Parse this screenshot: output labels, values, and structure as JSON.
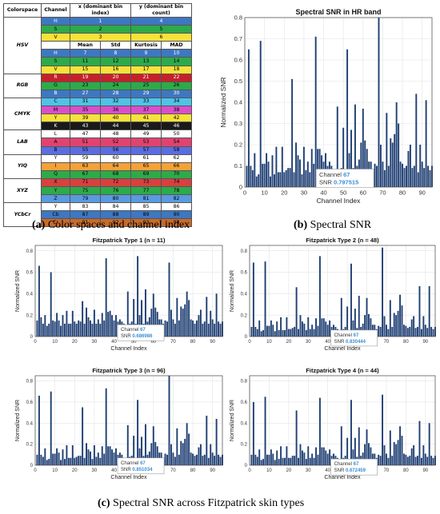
{
  "captions": {
    "a_label": "(a)",
    "a_text": "Color spaces and channel index",
    "b_label": "(b)",
    "b_text": "Spectral SNR",
    "c_label": "(c)",
    "c_text": "Spectral SNR across Fitzpatrick skin types"
  },
  "table": {
    "headers": [
      "Colorspace",
      "Channel",
      "x (dominant bin index)",
      "y (dominant bin count)"
    ],
    "stat_headers": [
      "Mean",
      "Std",
      "Kurtosis",
      "MAD"
    ],
    "colorspaces": [
      {
        "name": "HSV",
        "channels": [
          [
            "H",
            "#3e77c2",
            "#fff"
          ],
          [
            "S",
            "#2eaa4a",
            "#000"
          ],
          [
            "V",
            "#f6e23a",
            "#000"
          ]
        ],
        "header_rows": [
          [
            "1",
            "4"
          ],
          [
            "2",
            "5"
          ],
          [
            "3",
            "6"
          ]
        ],
        "stat_rows": [
          [
            "7",
            "8",
            "9",
            "10"
          ],
          [
            "11",
            "12",
            "13",
            "14"
          ],
          [
            "15",
            "16",
            "17",
            "18"
          ]
        ]
      },
      {
        "name": "RGB",
        "channels": [
          [
            "R",
            "#c8202a",
            "#fff"
          ],
          [
            "G",
            "#2eaa4a",
            "#000"
          ],
          [
            "B",
            "#3e77c2",
            "#fff"
          ]
        ],
        "stat_rows": [
          [
            "19",
            "20",
            "21",
            "22"
          ],
          [
            "23",
            "24",
            "25",
            "26"
          ],
          [
            "27",
            "28",
            "29",
            "30"
          ]
        ]
      },
      {
        "name": "CMYK",
        "channels": [
          [
            "C",
            "#4fc3e8",
            "#000"
          ],
          [
            "M",
            "#d94fc9",
            "#000"
          ],
          [
            "Y",
            "#f6e23a",
            "#000"
          ],
          [
            "K",
            "#1a1a1a",
            "#fff"
          ]
        ],
        "stat_rows": [
          [
            "31",
            "32",
            "33",
            "34"
          ],
          [
            "35",
            "36",
            "37",
            "38"
          ],
          [
            "39",
            "40",
            "41",
            "42"
          ],
          [
            "43",
            "44",
            "45",
            "46"
          ]
        ]
      },
      {
        "name": "LAB",
        "channels": [
          [
            "L",
            "#ffffff",
            "#000"
          ],
          [
            "A",
            "#e0446e",
            "#000"
          ],
          [
            "B",
            "#5a6ee0",
            "#000"
          ]
        ],
        "stat_rows": [
          [
            "47",
            "48",
            "49",
            "50"
          ],
          [
            "51",
            "52",
            "53",
            "54"
          ],
          [
            "55",
            "56",
            "57",
            "58"
          ]
        ]
      },
      {
        "name": "YIQ",
        "channels": [
          [
            "Y",
            "#ffffff",
            "#000"
          ],
          [
            "I",
            "#f4a13a",
            "#000"
          ],
          [
            "Q",
            "#2eaa4a",
            "#000"
          ]
        ],
        "stat_rows": [
          [
            "59",
            "60",
            "61",
            "62"
          ],
          [
            "63",
            "64",
            "65",
            "66"
          ],
          [
            "67",
            "68",
            "69",
            "70"
          ]
        ]
      },
      {
        "name": "XYZ",
        "channels": [
          [
            "X",
            "#d94040",
            "#000"
          ],
          [
            "Y",
            "#2eaa4a",
            "#000"
          ],
          [
            "Z",
            "#5a9ae0",
            "#000"
          ]
        ],
        "stat_rows": [
          [
            "71",
            "72",
            "73",
            "74"
          ],
          [
            "75",
            "76",
            "77",
            "78"
          ],
          [
            "79",
            "80",
            "81",
            "82"
          ]
        ]
      },
      {
        "name": "YCbCr",
        "channels": [
          [
            "Y",
            "#ffffff",
            "#000"
          ],
          [
            "Cb",
            "#3e77c2",
            "#000"
          ],
          [
            "Cr",
            "#c86a2a",
            "#000"
          ]
        ],
        "stat_rows": [
          [
            "83",
            "84",
            "85",
            "86"
          ],
          [
            "87",
            "88",
            "89",
            "90"
          ],
          [
            "91",
            "92",
            "93",
            "94"
          ]
        ]
      }
    ]
  },
  "chart_data": [
    {
      "type": "bar",
      "title": "Spectral SNR in HR band",
      "xlabel": "Channel Index",
      "ylabel": "Normalized SNR",
      "xlim": [
        0,
        95
      ],
      "ylim": [
        0,
        0.8
      ],
      "yticks": [
        "0",
        "0.1",
        "0.2",
        "0.3",
        "0.4",
        "0.5",
        "0.6",
        "0.7",
        "0.8"
      ],
      "xticks": [
        "0",
        "10",
        "20",
        "30",
        "40",
        "50",
        "60",
        "70",
        "80",
        "90"
      ],
      "grid": true,
      "bar_color": "#1f3f73",
      "annotation": {
        "line1_label": "Channel",
        "line1_value": "67",
        "line2_label": "SNR",
        "line2_value": "0.797515",
        "value_color": "#3a8fd8"
      },
      "values": [
        0.1,
        0.65,
        0.1,
        0.08,
        0.16,
        0.05,
        0.06,
        0.69,
        0.11,
        0.11,
        0.16,
        0.12,
        0.05,
        0.15,
        0.06,
        0.19,
        0.07,
        0.07,
        0.19,
        0.07,
        0.08,
        0.09,
        0.09,
        0.51,
        0.07,
        0.21,
        0.15,
        0.13,
        0.06,
        0.19,
        0.08,
        0.12,
        0.07,
        0.18,
        0.11,
        0.71,
        0.18,
        0.18,
        0.15,
        0.12,
        0.16,
        0.1,
        0.12,
        0.1,
        0.07,
        0.06,
        0.38,
        0.08,
        0.09,
        0.28,
        0.06,
        0.65,
        0.16,
        0.27,
        0.09,
        0.39,
        0.1,
        0.13,
        0.21,
        0.37,
        0.22,
        0.18,
        0.12,
        0.12,
        0.07,
        0.11,
        0.1,
        0.8,
        0.2,
        0.12,
        0.08,
        0.35,
        0.1,
        0.23,
        0.21,
        0.25,
        0.4,
        0.3,
        0.12,
        0.11,
        0.09,
        0.1,
        0.17,
        0.2,
        0.09,
        0.1,
        0.44,
        0.07,
        0.2,
        0.12,
        0.09,
        0.41,
        0.1,
        0.08,
        0.1
      ]
    },
    {
      "type": "bar",
      "title": "Fitzpatrick Type 1 (n = 11)",
      "xlabel": "Channel Index",
      "ylabel": "Normalized SNR",
      "xlim": [
        0,
        95
      ],
      "ylim": [
        0,
        0.85
      ],
      "yticks": [
        "0",
        "0.2",
        "0.4",
        "0.6",
        "0.8"
      ],
      "xticks": [
        "0",
        "10",
        "20",
        "30",
        "40",
        "50",
        "60",
        "70",
        "80",
        "90"
      ],
      "grid": true,
      "bar_color": "#1f3f73",
      "annotation": {
        "line1_label": "Channel",
        "line1_value": "67",
        "line2_label": "SNR",
        "line2_value": "0.686986",
        "value_color": "#3a8fd8"
      },
      "values": [
        0.15,
        0.66,
        0.18,
        0.12,
        0.2,
        0.1,
        0.12,
        0.6,
        0.15,
        0.14,
        0.22,
        0.15,
        0.1,
        0.2,
        0.12,
        0.24,
        0.12,
        0.12,
        0.24,
        0.14,
        0.12,
        0.15,
        0.14,
        0.33,
        0.12,
        0.27,
        0.18,
        0.15,
        0.12,
        0.25,
        0.12,
        0.16,
        0.12,
        0.22,
        0.15,
        0.73,
        0.23,
        0.24,
        0.2,
        0.15,
        0.2,
        0.14,
        0.16,
        0.14,
        0.12,
        0.1,
        0.42,
        0.12,
        0.14,
        0.35,
        0.12,
        0.75,
        0.2,
        0.34,
        0.12,
        0.44,
        0.14,
        0.18,
        0.26,
        0.4,
        0.27,
        0.23,
        0.16,
        0.16,
        0.12,
        0.15,
        0.14,
        0.69,
        0.25,
        0.16,
        0.12,
        0.36,
        0.15,
        0.28,
        0.26,
        0.3,
        0.42,
        0.34,
        0.16,
        0.15,
        0.12,
        0.15,
        0.2,
        0.25,
        0.12,
        0.14,
        0.37,
        0.12,
        0.24,
        0.16,
        0.12,
        0.4,
        0.14,
        0.12,
        0.14
      ]
    },
    {
      "type": "bar",
      "title": "Fitzpatrick Type 2 (n = 48)",
      "xlabel": "Channel Index",
      "ylabel": "Normalized SNR",
      "xlim": [
        0,
        95
      ],
      "ylim": [
        0,
        0.85
      ],
      "yticks": [
        "0",
        "0.2",
        "0.4",
        "0.6",
        "0.8"
      ],
      "xticks": [
        "0",
        "10",
        "20",
        "30",
        "40",
        "50",
        "60",
        "70",
        "80",
        "90"
      ],
      "grid": true,
      "bar_color": "#1f3f73",
      "annotation": {
        "line1_label": "Channel",
        "line1_value": "67",
        "line2_label": "SNR",
        "line2_value": "0.830444",
        "value_color": "#3a8fd8"
      },
      "values": [
        0.09,
        0.69,
        0.09,
        0.07,
        0.15,
        0.05,
        0.06,
        0.7,
        0.1,
        0.1,
        0.15,
        0.11,
        0.05,
        0.14,
        0.06,
        0.18,
        0.06,
        0.06,
        0.18,
        0.07,
        0.07,
        0.08,
        0.09,
        0.46,
        0.07,
        0.2,
        0.14,
        0.12,
        0.06,
        0.18,
        0.07,
        0.11,
        0.07,
        0.17,
        0.1,
        0.75,
        0.17,
        0.17,
        0.14,
        0.11,
        0.15,
        0.09,
        0.11,
        0.09,
        0.07,
        0.06,
        0.36,
        0.07,
        0.09,
        0.28,
        0.06,
        0.68,
        0.15,
        0.26,
        0.08,
        0.38,
        0.09,
        0.12,
        0.2,
        0.36,
        0.21,
        0.17,
        0.11,
        0.11,
        0.07,
        0.1,
        0.09,
        0.83,
        0.19,
        0.11,
        0.07,
        0.34,
        0.09,
        0.22,
        0.2,
        0.24,
        0.39,
        0.29,
        0.11,
        0.1,
        0.08,
        0.09,
        0.16,
        0.19,
        0.08,
        0.09,
        0.47,
        0.07,
        0.19,
        0.11,
        0.08,
        0.47,
        0.09,
        0.07,
        0.09
      ]
    },
    {
      "type": "bar",
      "title": "Fitzpatrick Type 3 (n = 96)",
      "xlabel": "Channel Index",
      "ylabel": "Normalized SNR",
      "xlim": [
        0,
        95
      ],
      "ylim": [
        0,
        0.85
      ],
      "yticks": [
        "0",
        "0.2",
        "0.4",
        "0.6",
        "0.8"
      ],
      "xticks": [
        "0",
        "10",
        "20",
        "30",
        "40",
        "50",
        "60",
        "70",
        "80",
        "90"
      ],
      "grid": true,
      "bar_color": "#1f3f73",
      "annotation": {
        "line1_label": "Channel",
        "line1_value": "67",
        "line2_label": "SNR",
        "line2_value": "0.851034",
        "value_color": "#3a8fd8"
      },
      "values": [
        0.1,
        0.66,
        0.1,
        0.08,
        0.16,
        0.05,
        0.06,
        0.7,
        0.11,
        0.11,
        0.16,
        0.12,
        0.05,
        0.15,
        0.06,
        0.19,
        0.07,
        0.07,
        0.19,
        0.07,
        0.08,
        0.09,
        0.09,
        0.55,
        0.07,
        0.21,
        0.15,
        0.13,
        0.06,
        0.19,
        0.08,
        0.12,
        0.07,
        0.18,
        0.11,
        0.73,
        0.18,
        0.18,
        0.15,
        0.12,
        0.16,
        0.1,
        0.12,
        0.1,
        0.07,
        0.06,
        0.38,
        0.08,
        0.09,
        0.28,
        0.06,
        0.62,
        0.16,
        0.27,
        0.09,
        0.39,
        0.1,
        0.13,
        0.21,
        0.37,
        0.22,
        0.18,
        0.12,
        0.12,
        0.07,
        0.11,
        0.1,
        0.85,
        0.2,
        0.12,
        0.08,
        0.35,
        0.1,
        0.23,
        0.21,
        0.25,
        0.4,
        0.3,
        0.12,
        0.11,
        0.09,
        0.1,
        0.17,
        0.2,
        0.09,
        0.1,
        0.47,
        0.07,
        0.2,
        0.12,
        0.09,
        0.44,
        0.1,
        0.08,
        0.1
      ]
    },
    {
      "type": "bar",
      "title": "Fitzpatrick Type 4 (n = 44)",
      "xlabel": "Channel Index",
      "ylabel": "Normalized SNR",
      "xlim": [
        0,
        95
      ],
      "ylim": [
        0,
        0.85
      ],
      "yticks": [
        "0",
        "0.2",
        "0.4",
        "0.6",
        "0.8"
      ],
      "xticks": [
        "0",
        "10",
        "20",
        "30",
        "40",
        "50",
        "60",
        "70",
        "80",
        "90"
      ],
      "grid": true,
      "bar_color": "#1f3f73",
      "annotation": {
        "line1_label": "Channel",
        "line1_value": "67",
        "line2_label": "SNR",
        "line2_value": "0.672459",
        "value_color": "#3a8fd8"
      },
      "values": [
        0.1,
        0.6,
        0.1,
        0.08,
        0.15,
        0.05,
        0.06,
        0.65,
        0.1,
        0.1,
        0.15,
        0.11,
        0.05,
        0.14,
        0.06,
        0.18,
        0.07,
        0.07,
        0.18,
        0.07,
        0.07,
        0.09,
        0.09,
        0.52,
        0.07,
        0.2,
        0.14,
        0.12,
        0.06,
        0.18,
        0.07,
        0.11,
        0.07,
        0.17,
        0.1,
        0.64,
        0.17,
        0.17,
        0.14,
        0.11,
        0.15,
        0.09,
        0.11,
        0.09,
        0.07,
        0.06,
        0.37,
        0.07,
        0.09,
        0.26,
        0.06,
        0.62,
        0.15,
        0.26,
        0.08,
        0.36,
        0.09,
        0.12,
        0.2,
        0.34,
        0.21,
        0.17,
        0.11,
        0.11,
        0.07,
        0.1,
        0.09,
        0.67,
        0.19,
        0.11,
        0.07,
        0.33,
        0.09,
        0.22,
        0.2,
        0.24,
        0.37,
        0.28,
        0.11,
        0.1,
        0.08,
        0.09,
        0.16,
        0.19,
        0.08,
        0.09,
        0.42,
        0.07,
        0.19,
        0.11,
        0.08,
        0.4,
        0.09,
        0.07,
        0.09
      ]
    }
  ]
}
